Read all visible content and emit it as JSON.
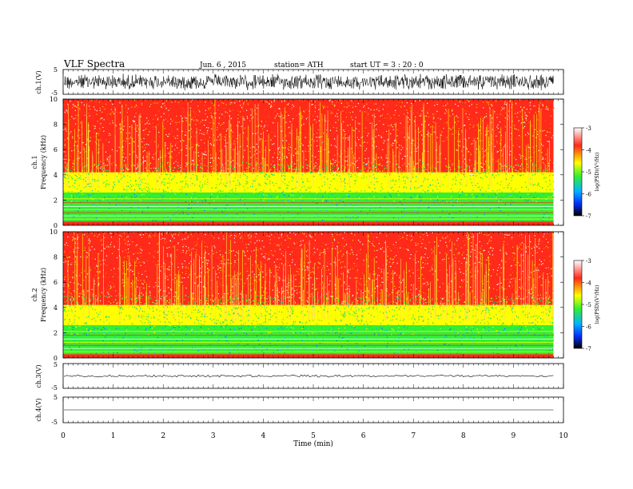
{
  "header": {
    "title": "VLF  Spectra",
    "date": "Jun. 6  , 2015",
    "station": "station= ATH",
    "start": "start  UT  =  3  : 20 : 0"
  },
  "chart_data": {
    "type": "heatmap",
    "xlabel": "Time  (min)",
    "xlim": [
      0,
      10
    ],
    "x_ticks": [
      "0",
      "1",
      "2",
      "3",
      "4",
      "5",
      "6",
      "7",
      "8",
      "9",
      "10"
    ],
    "record_end_min": 9.8,
    "panels": [
      {
        "kind": "waveform",
        "ylabel": "ch.1(V)",
        "ylim": [
          -5,
          5
        ],
        "y_ticks": [
          "5",
          "-5"
        ],
        "amplitude": 1.0
      },
      {
        "kind": "spectrogram",
        "ylabel_top": "ch.1",
        "ylabel": "Frequency  (kHz)",
        "ylim": [
          0,
          10
        ],
        "y_ticks": [
          "0",
          "2",
          "4",
          "6",
          "8",
          "10"
        ]
      },
      {
        "kind": "spectrogram",
        "ylabel_top": "ch.2",
        "ylabel": "Frequency  (kHz)",
        "ylim": [
          0,
          10
        ],
        "y_ticks": [
          "0",
          "2",
          "4",
          "6",
          "8",
          "10"
        ]
      },
      {
        "kind": "waveform",
        "ylabel": "ch.3(V)",
        "ylim": [
          -5,
          5
        ],
        "y_ticks": [
          "5",
          "-5"
        ],
        "amplitude": 0.15
      },
      {
        "kind": "waveform",
        "ylabel": "ch.4(V)",
        "ylim": [
          -5,
          5
        ],
        "y_ticks": [
          "5",
          "-5"
        ],
        "amplitude": 0.0
      }
    ],
    "colorbar": {
      "label": "log(PSD)(V²/Hz)",
      "range": [
        -7,
        -3
      ],
      "ticks": [
        "-3",
        "-4",
        "-5",
        "-6",
        "-7"
      ],
      "colors": [
        "#ffffff",
        "#ff2a1a",
        "#ffff00",
        "#33ee33",
        "#00b4ff",
        "#0030ff",
        "#000000"
      ]
    }
  }
}
